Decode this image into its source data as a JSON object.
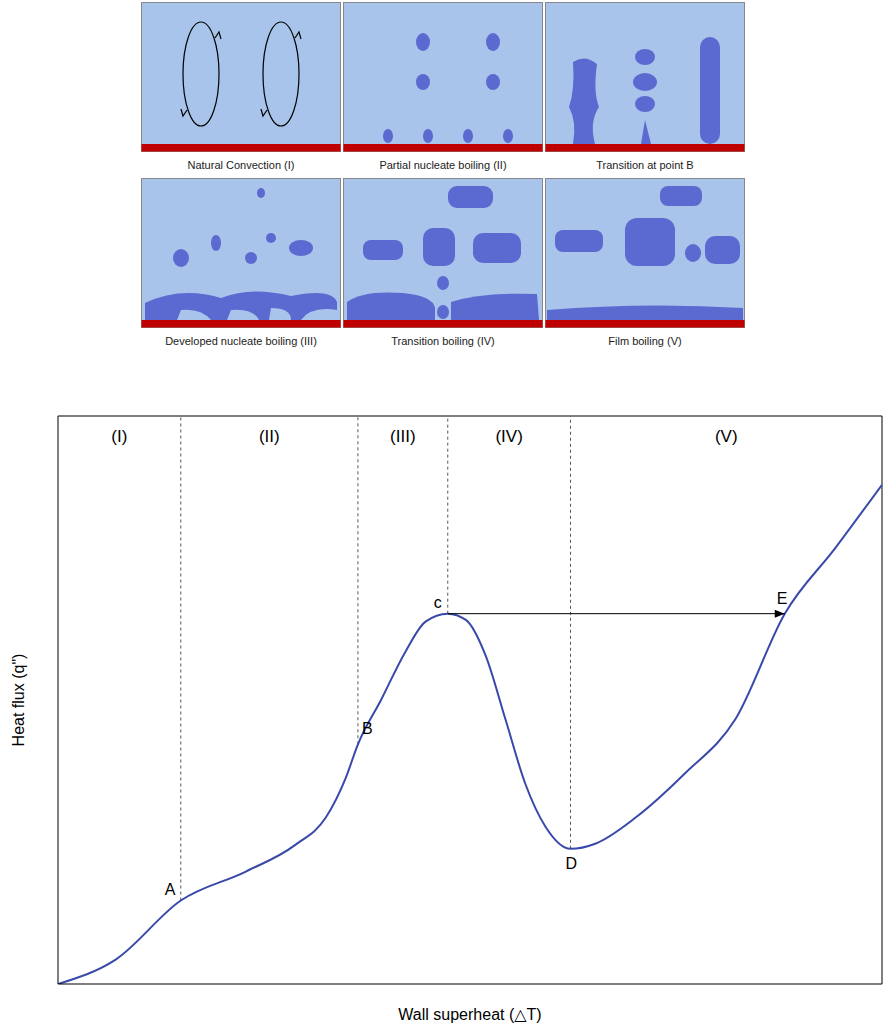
{
  "panels": [
    {
      "label": "Natural Convection (I)"
    },
    {
      "label": "Partial nucleate boiling (II)"
    },
    {
      "label": "Transition at point B"
    },
    {
      "label": "Developed nucleate boiling (III)"
    },
    {
      "label": "Transition boiling (IV)"
    },
    {
      "label": "Film boiling (V)"
    }
  ],
  "chart_data": {
    "type": "line",
    "xlabel": "Wall superheat (△T)",
    "ylabel": "Heat flux (q\")",
    "x": [
      0,
      7.0,
      14.9,
      22.8,
      28.8,
      32.5,
      34.9,
      36.4,
      39.2,
      42.2,
      44.6,
      47.3,
      49.5,
      51.9,
      54.3,
      56.7,
      59.2,
      62.2,
      65.2,
      70.1,
      76.1,
      82.2,
      88.2,
      94.3,
      100
    ],
    "values": [
      0,
      4.3,
      14.7,
      19.8,
      24.5,
      29.3,
      36.2,
      42.2,
      50.0,
      58.6,
      63.8,
      65.2,
      64.1,
      57.8,
      46.6,
      35.3,
      27.6,
      23.8,
      24.7,
      29.3,
      37.1,
      46.6,
      65.2,
      76.7,
      87.9
    ],
    "color": "#3949ab",
    "xlim": [
      0,
      100
    ],
    "ylim": [
      0,
      100
    ],
    "tick_labels": false,
    "regions": [
      "(I)",
      "(II)",
      "(III)",
      "(IV)",
      "(V)"
    ],
    "points": [
      {
        "label": "A",
        "x": 14.9,
        "y": 14.7
      },
      {
        "label": "B",
        "x": 36.4,
        "y": 42.2
      },
      {
        "label": "c",
        "x": 47.3,
        "y": 65.2
      },
      {
        "label": "D",
        "x": 62.2,
        "y": 23.8
      },
      {
        "label": "E",
        "x": 88.2,
        "y": 65.2
      }
    ],
    "arrow": {
      "from": "c",
      "to": "E"
    }
  }
}
